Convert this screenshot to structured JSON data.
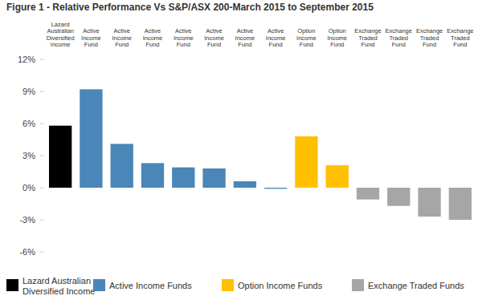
{
  "chart_data": {
    "type": "bar",
    "title": "Figure 1 - Relative Performance Vs S&P/ASX 200-March 2015 to September 2015",
    "categories": [
      "Lazard Australian Diversified Income",
      "Active Income Fund",
      "Active Income Fund",
      "Active Income Fund",
      "Active Income Fund",
      "Active Income Fund",
      "Active Income Fund",
      "Active Income Fund",
      "Option Income Fund",
      "Option Income Fund",
      "Exchange Traded Fund",
      "Exchange Traded Fund",
      "Exchange Traded Fund",
      "Exchange Traded Fund"
    ],
    "series": [
      {
        "name": "Lazard Australian Diversified Income",
        "color": "#000000",
        "values": [
          5.8,
          null,
          null,
          null,
          null,
          null,
          null,
          null,
          null,
          null,
          null,
          null,
          null,
          null
        ]
      },
      {
        "name": "Active Income Funds",
        "color": "#4a86b8",
        "values": [
          null,
          9.2,
          4.1,
          2.3,
          1.9,
          1.8,
          0.6,
          -0.1,
          null,
          null,
          null,
          null,
          null,
          null
        ]
      },
      {
        "name": "Option Income Funds",
        "color": "#ffc000",
        "values": [
          null,
          null,
          null,
          null,
          null,
          null,
          null,
          null,
          4.8,
          2.1,
          null,
          null,
          null,
          null
        ]
      },
      {
        "name": "Exchange Traded Funds",
        "color": "#a6a6a6",
        "values": [
          null,
          null,
          null,
          null,
          null,
          null,
          null,
          null,
          null,
          null,
          -1.1,
          -1.7,
          -2.7,
          -3.0
        ]
      }
    ],
    "ylim": [
      -6,
      12
    ],
    "yticks": [
      {
        "value": -6,
        "label": "-6%"
      },
      {
        "value": -3,
        "label": "-3%"
      },
      {
        "value": 0,
        "label": "0%"
      },
      {
        "value": 3,
        "label": "3%"
      },
      {
        "value": 6,
        "label": "6%"
      },
      {
        "value": 9,
        "label": "9%"
      },
      {
        "value": 12,
        "label": "12%"
      }
    ],
    "grid": false,
    "legend": "bottom"
  }
}
